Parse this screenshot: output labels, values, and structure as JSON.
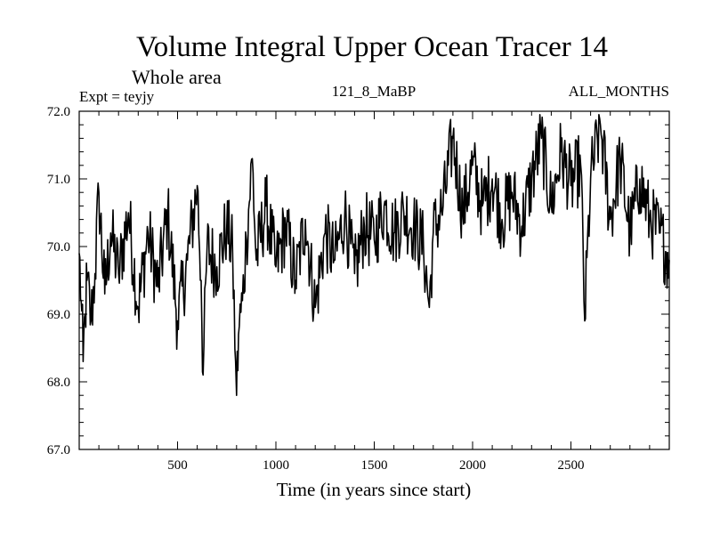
{
  "chart_data": {
    "type": "line",
    "title": "Volume Integral Upper Ocean Tracer 14",
    "subtitle": "Whole area",
    "left_label": "Expt = teyjy",
    "center_label": "121_8_MaBP",
    "right_label": "ALL_MONTHS",
    "xlabel": "Time (in years since start)",
    "ylabel": "",
    "xlim": [
      0,
      3000
    ],
    "ylim": [
      67.0,
      72.0
    ],
    "x_ticks": [
      500,
      1000,
      1500,
      2000,
      2500
    ],
    "x_tick_labels": [
      "500",
      "1000",
      "1500",
      "2000",
      "2500"
    ],
    "y_ticks": [
      67.0,
      68.0,
      69.0,
      70.0,
      71.0,
      72.0
    ],
    "y_tick_labels": [
      "67.0",
      "68.0",
      "69.0",
      "70.0",
      "71.0",
      "72.0"
    ],
    "x_minor_step": 100,
    "y_minor_step": 0.2,
    "grid": false,
    "series": [
      {
        "name": "Upper Ocean Tracer 14",
        "x": [
          0,
          10,
          20,
          30,
          40,
          60,
          80,
          100,
          130,
          160,
          200,
          250,
          300,
          350,
          400,
          450,
          500,
          550,
          600,
          620,
          630,
          650,
          700,
          750,
          780,
          795,
          800,
          810,
          830,
          850,
          880,
          900,
          950,
          1000,
          1050,
          1100,
          1150,
          1200,
          1250,
          1300,
          1350,
          1400,
          1450,
          1500,
          1550,
          1600,
          1650,
          1700,
          1750,
          1780,
          1800,
          1850,
          1900,
          1950,
          2000,
          2050,
          2100,
          2150,
          2200,
          2250,
          2300,
          2350,
          2400,
          2450,
          2500,
          2550,
          2570,
          2600,
          2650,
          2700,
          2750,
          2800,
          2850,
          2900,
          2950,
          3000
        ],
        "values": [
          69.9,
          69.2,
          68.3,
          69.0,
          69.5,
          68.9,
          69.6,
          70.8,
          69.3,
          70.2,
          69.6,
          70.5,
          69.1,
          70.2,
          69.4,
          70.5,
          68.9,
          69.8,
          70.9,
          69.5,
          68.1,
          70.0,
          69.7,
          70.3,
          69.9,
          68.3,
          67.8,
          68.7,
          69.2,
          70.1,
          71.3,
          69.8,
          70.6,
          69.7,
          70.3,
          69.5,
          70.4,
          69.1,
          70.2,
          69.8,
          70.5,
          69.6,
          70.3,
          70.1,
          70.6,
          70.2,
          70.5,
          70.3,
          70.0,
          69.1,
          70.2,
          70.6,
          71.6,
          70.5,
          71.2,
          70.6,
          71.0,
          70.4,
          70.8,
          70.3,
          71.0,
          71.6,
          70.6,
          71.4,
          70.9,
          71.2,
          68.9,
          71.0,
          71.8,
          70.4,
          71.3,
          70.2,
          71.0,
          70.4,
          70.2,
          69.8
        ]
      }
    ]
  }
}
